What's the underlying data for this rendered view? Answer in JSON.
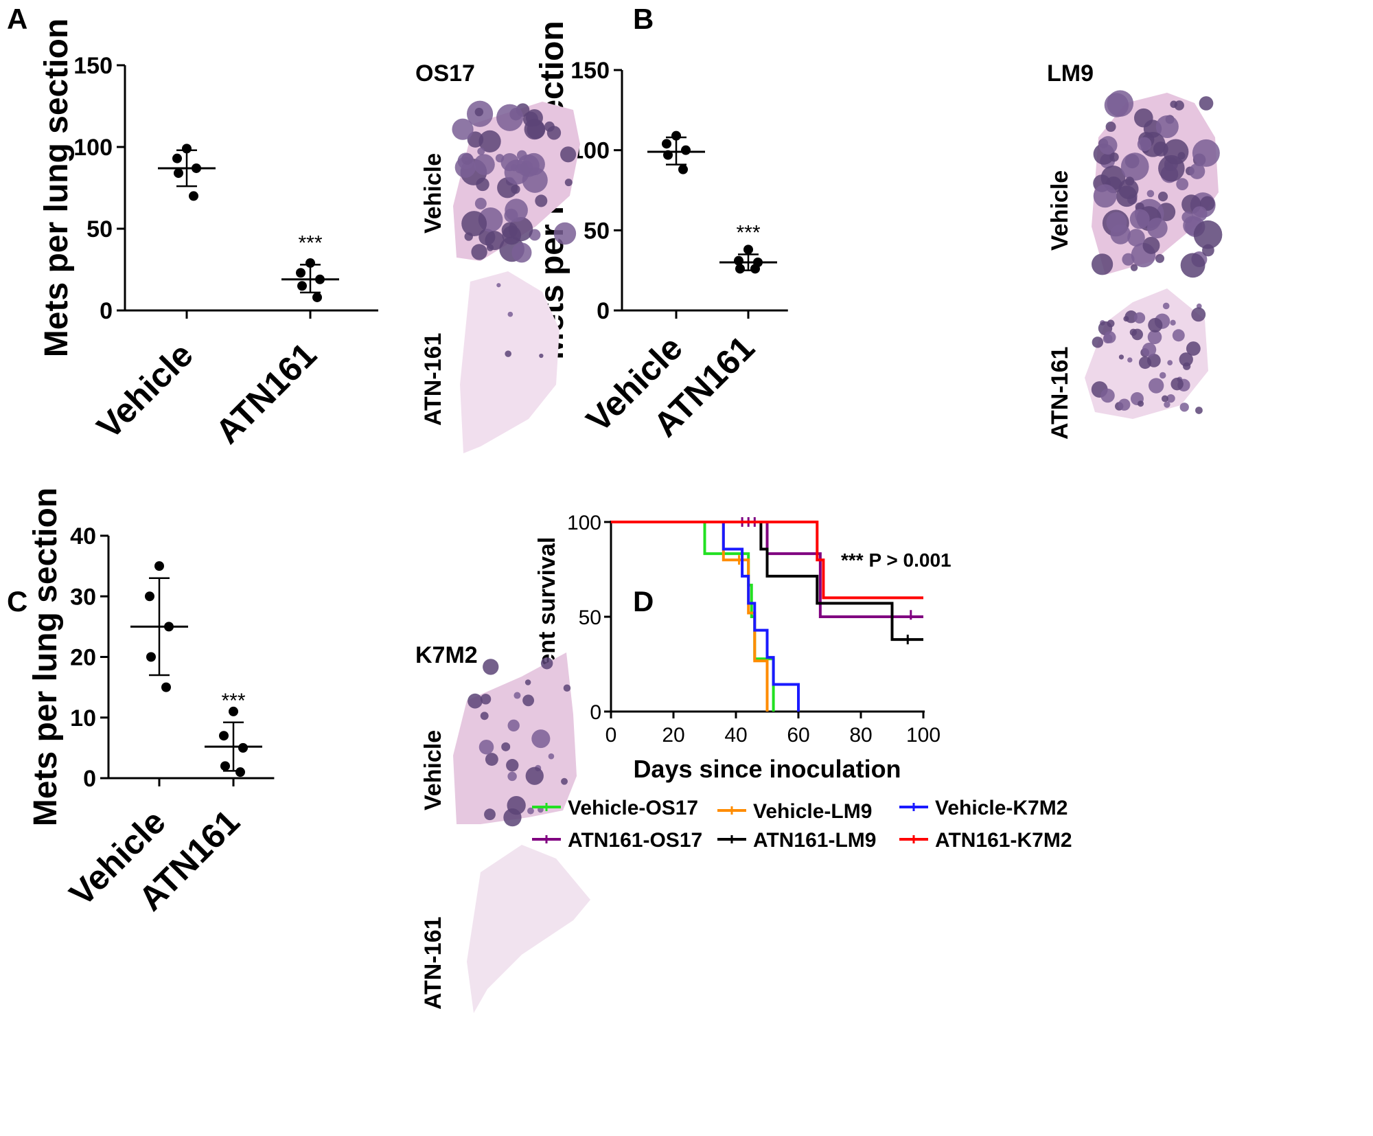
{
  "panels": {
    "A": {
      "letter": "A",
      "sample": "OS17",
      "tissue_top": "Vehicle",
      "tissue_bottom": "ATN-161"
    },
    "B": {
      "letter": "B",
      "sample": "LM9",
      "tissue_top": "Vehicle",
      "tissue_bottom": "ATN-161"
    },
    "C": {
      "letter": "C",
      "sample": "K7M2",
      "tissue_top": "Vehicle",
      "tissue_bottom": "ATN-161"
    },
    "D": {
      "letter": "D"
    }
  },
  "colors": {
    "tissue_background": "#e9cde3",
    "tissue_sparse": "#f1dfee",
    "metastasis": "#7a5f95",
    "metastasis_dark": "#5c4477"
  },
  "chart_data": [
    {
      "panel": "A",
      "type": "scatter",
      "ylabel": "Mets per lung section",
      "categories": [
        "Vehicle",
        "ATN161"
      ],
      "ylim": [
        0,
        150
      ],
      "yticks": [
        0,
        50,
        100,
        150
      ],
      "groups": [
        {
          "category": "Vehicle",
          "points": [
            99,
            93,
            87,
            84,
            70
          ],
          "mean": 87,
          "sd_upper": 98,
          "sd_lower": 76
        },
        {
          "category": "ATN161",
          "points": [
            29,
            23,
            19,
            15,
            8
          ],
          "mean": 19,
          "sd_upper": 28,
          "sd_lower": 11
        }
      ],
      "annotations": [
        {
          "category": "ATN161",
          "text": "***"
        }
      ]
    },
    {
      "panel": "B",
      "type": "scatter",
      "ylabel": "Mets per lung section",
      "categories": [
        "Vehicle",
        "ATN161"
      ],
      "ylim": [
        0,
        150
      ],
      "yticks": [
        0,
        50,
        100,
        150
      ],
      "groups": [
        {
          "category": "Vehicle",
          "points": [
            109,
            104,
            100,
            97,
            88
          ],
          "mean": 99,
          "sd_upper": 108,
          "sd_lower": 91
        },
        {
          "category": "ATN161",
          "points": [
            38,
            31,
            30,
            26,
            26
          ],
          "mean": 30,
          "sd_upper": 35,
          "sd_lower": 25
        }
      ],
      "annotations": [
        {
          "category": "ATN161",
          "text": "***"
        }
      ]
    },
    {
      "panel": "C",
      "type": "scatter",
      "ylabel": "Mets per lung section",
      "categories": [
        "Vehicle",
        "ATN161"
      ],
      "ylim": [
        0,
        40
      ],
      "yticks": [
        0,
        10,
        20,
        30,
        40
      ],
      "groups": [
        {
          "category": "Vehicle",
          "points": [
            35,
            30,
            25,
            20,
            15
          ],
          "mean": 25,
          "sd_upper": 33,
          "sd_lower": 17
        },
        {
          "category": "ATN161",
          "points": [
            11,
            7,
            5,
            2,
            1
          ],
          "mean": 5.2,
          "sd_upper": 9.2,
          "sd_lower": 1.2
        }
      ],
      "annotations": [
        {
          "category": "ATN161",
          "text": "***"
        }
      ]
    },
    {
      "panel": "D",
      "type": "line",
      "xlabel": "Days since inoculation",
      "ylabel": "Percent survival",
      "xlim": [
        0,
        100
      ],
      "ylim": [
        0,
        100
      ],
      "xticks": [
        0,
        20,
        40,
        60,
        80,
        100
      ],
      "yticks": [
        0,
        50,
        100
      ],
      "annotation": "*** P > 0.001",
      "series": [
        {
          "name": "Vehicle-OS17",
          "color": "#22e022",
          "steps": [
            [
              0,
              100
            ],
            [
              30,
              83.3
            ],
            [
              44,
              66.7
            ],
            [
              45,
              50
            ],
            [
              46,
              27.8
            ],
            [
              50,
              27.8
            ],
            [
              52,
              0
            ]
          ],
          "censored": []
        },
        {
          "name": "Vehicle-LM9",
          "color": "#ff8c00",
          "steps": [
            [
              0,
              100
            ],
            [
              36,
              80
            ],
            [
              44,
              52
            ],
            [
              46,
              26.7
            ],
            [
              50,
              0
            ]
          ],
          "censored": [
            [
              41,
              80
            ]
          ]
        },
        {
          "name": "Vehicle-K7M2",
          "color": "#1a1aff",
          "steps": [
            [
              0,
              100
            ],
            [
              36,
              85.7
            ],
            [
              42,
              71.4
            ],
            [
              44,
              57.1
            ],
            [
              46,
              42.9
            ],
            [
              50,
              28.6
            ],
            [
              52,
              14.3
            ],
            [
              60,
              0
            ]
          ],
          "censored": []
        },
        {
          "name": "ATN161-OS17",
          "color": "#800080",
          "steps": [
            [
              0,
              100
            ],
            [
              50,
              83.3
            ],
            [
              67,
              50
            ],
            [
              100,
              50
            ]
          ],
          "censored": [
            [
              42,
              100
            ],
            [
              44,
              100
            ],
            [
              46,
              100
            ],
            [
              96,
              51
            ]
          ]
        },
        {
          "name": "ATN161-LM9",
          "color": "#000000",
          "steps": [
            [
              0,
              100
            ],
            [
              48,
              85.7
            ],
            [
              50,
              71.4
            ],
            [
              66,
              57.1
            ],
            [
              90,
              38
            ],
            [
              100,
              38
            ]
          ],
          "censored": [
            [
              95,
              38
            ]
          ]
        },
        {
          "name": "ATN161-K7M2",
          "color": "#ff0000",
          "steps": [
            [
              0,
              100
            ],
            [
              66,
              80
            ],
            [
              68,
              60
            ],
            [
              100,
              60
            ]
          ],
          "censored": []
        }
      ]
    }
  ]
}
